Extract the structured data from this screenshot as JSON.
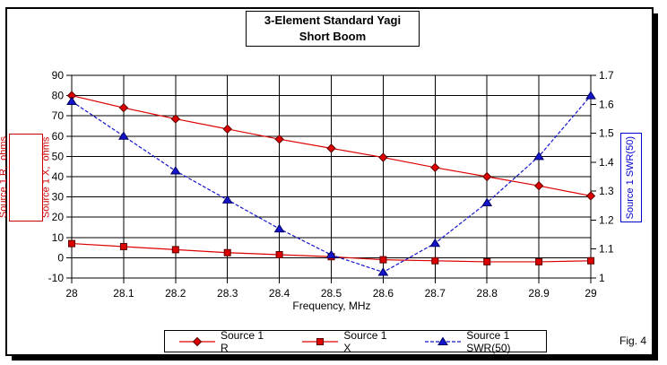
{
  "title": {
    "line1": "3-Element Standard Yagi",
    "line2": "Short Boom"
  },
  "figure_label": "Fig. 4",
  "axes": {
    "x_label": "Frequency, MHz",
    "y_left_label_line1": "Source 1 R,  ohms",
    "y_left_label_line2": "Source 1 X,  ohms",
    "y_right_label": "Source 1 SWR(50)",
    "x_ticks": [
      "28",
      "28.1",
      "28.2",
      "28.3",
      "28.4",
      "28.5",
      "28.6",
      "28.7",
      "28.8",
      "28.9",
      "29"
    ],
    "y_left_ticks": [
      "90",
      "80",
      "70",
      "60",
      "50",
      "40",
      "30",
      "20",
      "10",
      "0",
      "-10"
    ],
    "y_right_ticks": [
      "1.7",
      "1.6",
      "1.5",
      "1.4",
      "1.3",
      "1.2",
      "1.1",
      "1"
    ]
  },
  "legend": {
    "items": [
      {
        "label": "Source 1 R"
      },
      {
        "label": "Source 1 X"
      },
      {
        "label": "Source 1 SWR(50)"
      }
    ]
  },
  "chart_data": {
    "type": "line",
    "title": "3-Element Standard Yagi Short Boom",
    "xlabel": "Frequency, MHz",
    "ylabel_left": "Source 1 R, ohms / Source 1 X, ohms",
    "ylabel_right": "Source 1 SWR(50)",
    "xlim": [
      28,
      29
    ],
    "ylim_left": [
      -10,
      90
    ],
    "ylim_right": [
      1,
      1.7
    ],
    "grid": true,
    "legend_position": "bottom",
    "x": [
      28,
      28.1,
      28.2,
      28.3,
      28.4,
      28.5,
      28.6,
      28.7,
      28.8,
      28.9,
      29
    ],
    "series": [
      {
        "name": "Source 1 R",
        "axis": "left",
        "marker": "diamond",
        "color": "#dd0000",
        "marker_stroke": "#5a0000",
        "values": [
          80,
          74,
          68.5,
          63.5,
          58.5,
          54,
          49.5,
          44.5,
          40,
          35.5,
          30.5
        ]
      },
      {
        "name": "Source 1 X",
        "axis": "left",
        "marker": "square",
        "color": "#dd0000",
        "marker_stroke": "#5a0000",
        "values": [
          7,
          5.5,
          4,
          2.5,
          1.5,
          0.5,
          -1,
          -1.5,
          -2,
          -2,
          -1.5
        ]
      },
      {
        "name": "Source 1 SWR(50)",
        "axis": "right",
        "marker": "triangle",
        "color": "#1414cc",
        "marker_stroke": "#000060",
        "dash": "4 2",
        "values": [
          1.61,
          1.49,
          1.37,
          1.27,
          1.17,
          1.08,
          1.02,
          1.12,
          1.26,
          1.42,
          1.63
        ]
      }
    ]
  }
}
